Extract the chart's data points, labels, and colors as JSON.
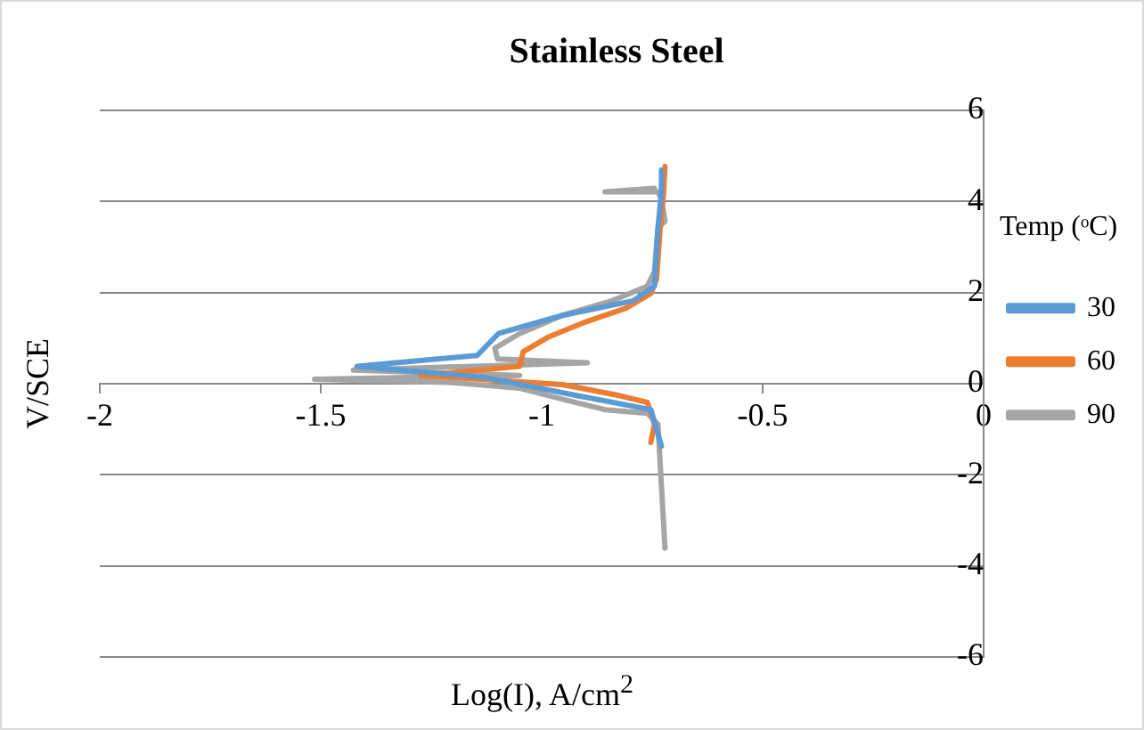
{
  "chart_data": {
    "type": "line",
    "title": "Stainless Steel",
    "xlabel": "Log(I), A/cm$^{2}$",
    "ylabel": "V/SCE",
    "legend_title": "Temp (ᵒC)",
    "legend": "right",
    "grid": "y",
    "marker": "none",
    "line_style": "solid",
    "xlim": [
      -2,
      0
    ],
    "xticks": [
      -2,
      -1.5,
      -1,
      -0.5,
      0
    ],
    "ylim": [
      -6,
      6
    ],
    "yticks": [
      -6,
      -4,
      -2,
      0,
      2,
      4,
      6
    ],
    "series": [
      {
        "name": "30",
        "color": "#5b9bd5",
        "x": [
          -0.729,
          -0.753,
          -0.921,
          -1.13,
          -1.418,
          -1.146,
          -1.098,
          -0.953,
          -0.793,
          -0.745,
          -0.737,
          -0.729,
          -0.729
        ],
        "values": [
          -1.37,
          -0.57,
          -0.26,
          0.14,
          0.38,
          0.62,
          1.1,
          1.5,
          1.82,
          2.14,
          3.41,
          4.21,
          4.69
        ]
      },
      {
        "name": "60",
        "color": "#ed7d31",
        "x": [
          -0.753,
          -0.745,
          -0.761,
          -0.825,
          -0.953,
          -1.274,
          -1.05,
          -1.042,
          -0.986,
          -0.905,
          -0.809,
          -0.753,
          -0.74,
          -0.732,
          -0.724,
          -0.721
        ],
        "values": [
          -1.29,
          -0.89,
          -0.41,
          -0.26,
          -0.02,
          0.18,
          0.38,
          0.7,
          1.02,
          1.34,
          1.66,
          1.98,
          2.3,
          3.41,
          4.21,
          4.77
        ]
      },
      {
        "name": "90",
        "color": "#a5a5a5",
        "x": [
          -0.721,
          -0.737,
          -0.761,
          -0.857,
          -0.953,
          -1.05,
          -1.21,
          -1.514,
          -1.05,
          -1.426,
          -0.897,
          -1.1,
          -1.106,
          -1.05,
          -0.953,
          -0.841,
          -0.761,
          -0.745,
          -0.737,
          -0.721,
          -0.729,
          -0.737,
          -0.857,
          -0.745
        ],
        "values": [
          -3.61,
          -0.89,
          -0.65,
          -0.57,
          -0.34,
          -0.1,
          0.03,
          0.1,
          0.18,
          0.3,
          0.46,
          0.54,
          0.78,
          1.1,
          1.5,
          1.82,
          2.14,
          2.46,
          3.41,
          3.57,
          4.05,
          4.21,
          4.21,
          4.29
        ]
      }
    ]
  }
}
